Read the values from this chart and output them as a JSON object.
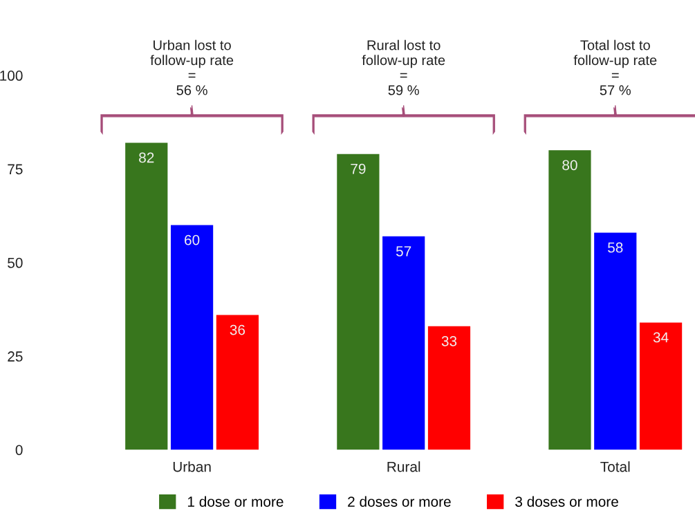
{
  "chart_data": {
    "type": "bar",
    "categories": [
      "Urban",
      "Rural",
      "Total"
    ],
    "series": [
      {
        "name": "1 dose or more",
        "color": "#38761d",
        "values": [
          82,
          79,
          80
        ]
      },
      {
        "name": "2 doses or more",
        "color": "#0000ff",
        "values": [
          60,
          57,
          58
        ]
      },
      {
        "name": "3 doses or more",
        "color": "#ff0000",
        "values": [
          36,
          33,
          34
        ]
      }
    ],
    "annotations": [
      "Urban lost to\nfollow-up rate\n=\n56 %",
      "Rural lost to\nfollow-up rate\n=\n59 %",
      "Total lost to\nfollow-up rate\n=\n57 %"
    ],
    "ylim": [
      0,
      100
    ],
    "yticks": [
      0,
      25,
      50,
      75,
      100
    ],
    "data_labels": true,
    "grid": false,
    "legend": "bottom"
  }
}
